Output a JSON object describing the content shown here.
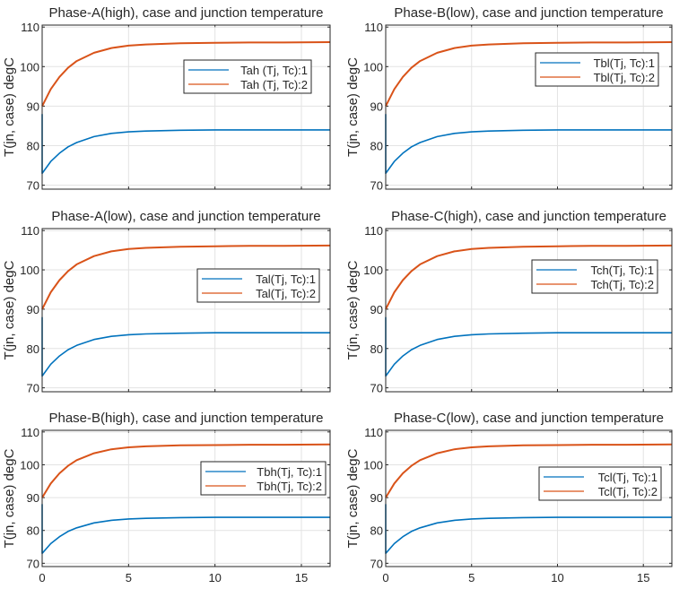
{
  "chart_data": [
    {
      "type": "line",
      "title": "Phase-A(high), case and junction temperature",
      "ylabel": "T(jn, case) degC",
      "xlabel": "",
      "xlim": [
        0,
        16.66
      ],
      "ylim": [
        69,
        110.5
      ],
      "yticks": [
        70,
        80,
        90,
        100,
        110
      ],
      "xticks": [
        0,
        5,
        10,
        15
      ],
      "show_xticklabels": false,
      "grid": true,
      "legend": "right",
      "series": [
        {
          "name": "Tah (Tj, Tc):1",
          "color": "#0072BD",
          "x": [
            0,
            0,
            0.5,
            1,
            1.5,
            2,
            3,
            4,
            5,
            6,
            8,
            10,
            12,
            14,
            16.66
          ],
          "y": [
            88,
            73,
            76,
            78.1,
            79.7,
            80.8,
            82.3,
            83.1,
            83.5,
            83.7,
            83.9,
            84,
            84,
            84,
            84
          ]
        },
        {
          "name": "Tah (Tj, Tc):2",
          "color": "#D95319",
          "x": [
            0,
            0.5,
            1,
            1.5,
            2,
            3,
            4,
            5,
            6,
            8,
            10,
            12,
            14,
            16.66
          ],
          "y": [
            90,
            94.3,
            97.4,
            99.7,
            101.4,
            103.5,
            104.7,
            105.3,
            105.6,
            105.9,
            106,
            106.1,
            106.1,
            106.2
          ]
        }
      ]
    },
    {
      "type": "line",
      "title": "Phase-B(low), case and junction temperature",
      "ylabel": "T(jn, case) degC",
      "xlabel": "",
      "xlim": [
        0,
        16.66
      ],
      "ylim": [
        69,
        110.5
      ],
      "yticks": [
        70,
        80,
        90,
        100,
        110
      ],
      "xticks": [
        0,
        5,
        10,
        15
      ],
      "show_xticklabels": false,
      "grid": true,
      "legend": "right",
      "series": [
        {
          "name": "Tbl(Tj, Tc):1",
          "color": "#0072BD",
          "x": [
            0,
            0,
            0.5,
            1,
            1.5,
            2,
            3,
            4,
            5,
            6,
            8,
            10,
            12,
            14,
            16.66
          ],
          "y": [
            88,
            73,
            76,
            78.1,
            79.7,
            80.8,
            82.3,
            83.1,
            83.5,
            83.7,
            83.9,
            84,
            84,
            84,
            84
          ]
        },
        {
          "name": "Tbl(Tj, Tc):2",
          "color": "#D95319",
          "x": [
            0,
            0.5,
            1,
            1.5,
            2,
            3,
            4,
            5,
            6,
            8,
            10,
            12,
            14,
            16.66
          ],
          "y": [
            90,
            94.3,
            97.4,
            99.7,
            101.4,
            103.5,
            104.7,
            105.3,
            105.6,
            105.9,
            106,
            106.1,
            106.1,
            106.2
          ]
        }
      ]
    },
    {
      "type": "line",
      "title": "Phase-A(low), case and junction temperature",
      "ylabel": "T(jn, case) degC",
      "xlabel": "",
      "xlim": [
        0,
        16.66
      ],
      "ylim": [
        69,
        110.5
      ],
      "yticks": [
        70,
        80,
        90,
        100,
        110
      ],
      "xticks": [
        0,
        5,
        10,
        15
      ],
      "show_xticklabels": false,
      "grid": true,
      "legend": "right",
      "series": [
        {
          "name": "Tal(Tj, Tc):1",
          "color": "#0072BD",
          "x": [
            0,
            0,
            0.5,
            1,
            1.5,
            2,
            3,
            4,
            5,
            6,
            8,
            10,
            12,
            14,
            16.66
          ],
          "y": [
            88,
            73,
            76,
            78.1,
            79.7,
            80.8,
            82.3,
            83.1,
            83.5,
            83.7,
            83.9,
            84,
            84,
            84,
            84
          ]
        },
        {
          "name": "Tal(Tj, Tc):2",
          "color": "#D95319",
          "x": [
            0,
            0.5,
            1,
            1.5,
            2,
            3,
            4,
            5,
            6,
            8,
            10,
            12,
            14,
            16.66
          ],
          "y": [
            90,
            94.3,
            97.4,
            99.7,
            101.4,
            103.5,
            104.7,
            105.3,
            105.6,
            105.9,
            106,
            106.1,
            106.1,
            106.2
          ]
        }
      ]
    },
    {
      "type": "line",
      "title": "Phase-C(high), case and junction temperature",
      "ylabel": "T(jn, case) degC",
      "xlabel": "",
      "xlim": [
        0,
        16.66
      ],
      "ylim": [
        69,
        110.5
      ],
      "yticks": [
        70,
        80,
        90,
        100,
        110
      ],
      "xticks": [
        0,
        5,
        10,
        15
      ],
      "show_xticklabels": false,
      "grid": true,
      "legend": "right",
      "series": [
        {
          "name": "Tch(Tj, Tc):1",
          "color": "#0072BD",
          "x": [
            0,
            0,
            0.5,
            1,
            1.5,
            2,
            3,
            4,
            5,
            6,
            8,
            10,
            12,
            14,
            16.66
          ],
          "y": [
            88,
            73,
            76,
            78.1,
            79.7,
            80.8,
            82.3,
            83.1,
            83.5,
            83.7,
            83.9,
            84,
            84,
            84,
            84
          ]
        },
        {
          "name": "Tch(Tj, Tc):2",
          "color": "#D95319",
          "x": [
            0,
            0.5,
            1,
            1.5,
            2,
            3,
            4,
            5,
            6,
            8,
            10,
            12,
            14,
            16.66
          ],
          "y": [
            90,
            94.3,
            97.4,
            99.7,
            101.4,
            103.5,
            104.7,
            105.3,
            105.6,
            105.9,
            106,
            106.1,
            106.1,
            106.2
          ]
        }
      ]
    },
    {
      "type": "line",
      "title": "Phase-B(high), case and junction temperature",
      "ylabel": "T(jn, case) degC",
      "xlabel": "",
      "xlim": [
        0,
        16.66
      ],
      "ylim": [
        69,
        110.5
      ],
      "yticks": [
        70,
        80,
        90,
        100,
        110
      ],
      "xticks": [
        0,
        5,
        10,
        15
      ],
      "show_xticklabels": true,
      "grid": true,
      "legend": "right",
      "series": [
        {
          "name": "Tbh(Tj, Tc):1",
          "color": "#0072BD",
          "x": [
            0,
            0,
            0.5,
            1,
            1.5,
            2,
            3,
            4,
            5,
            6,
            8,
            10,
            12,
            14,
            16.66
          ],
          "y": [
            88,
            73,
            76,
            78.1,
            79.7,
            80.8,
            82.3,
            83.1,
            83.5,
            83.7,
            83.9,
            84,
            84,
            84,
            84
          ]
        },
        {
          "name": "Tbh(Tj, Tc):2",
          "color": "#D95319",
          "x": [
            0,
            0.5,
            1,
            1.5,
            2,
            3,
            4,
            5,
            6,
            8,
            10,
            12,
            14,
            16.66
          ],
          "y": [
            90,
            94.3,
            97.4,
            99.7,
            101.4,
            103.5,
            104.7,
            105.3,
            105.6,
            105.9,
            106,
            106.1,
            106.1,
            106.2
          ]
        }
      ]
    },
    {
      "type": "line",
      "title": "Phase-C(low), case and junction temperature",
      "ylabel": "T(jn, case) degC",
      "xlabel": "",
      "xlim": [
        0,
        16.66
      ],
      "ylim": [
        69,
        110.5
      ],
      "yticks": [
        70,
        80,
        90,
        100,
        110
      ],
      "xticks": [
        0,
        5,
        10,
        15
      ],
      "show_xticklabels": true,
      "grid": true,
      "legend": "right",
      "series": [
        {
          "name": "Tcl(Tj, Tc):1",
          "color": "#0072BD",
          "x": [
            0,
            0,
            0.5,
            1,
            1.5,
            2,
            3,
            4,
            5,
            6,
            8,
            10,
            12,
            14,
            16.66
          ],
          "y": [
            88,
            73,
            76,
            78.1,
            79.7,
            80.8,
            82.3,
            83.1,
            83.5,
            83.7,
            83.9,
            84,
            84,
            84,
            84
          ]
        },
        {
          "name": "Tcl(Tj, Tc):2",
          "color": "#D95319",
          "x": [
            0,
            0.5,
            1,
            1.5,
            2,
            3,
            4,
            5,
            6,
            8,
            10,
            12,
            14,
            16.66
          ],
          "y": [
            90,
            94.3,
            97.4,
            99.7,
            101.4,
            103.5,
            104.7,
            105.3,
            105.6,
            105.9,
            106,
            106.1,
            106.1,
            106.2
          ]
        }
      ]
    }
  ]
}
